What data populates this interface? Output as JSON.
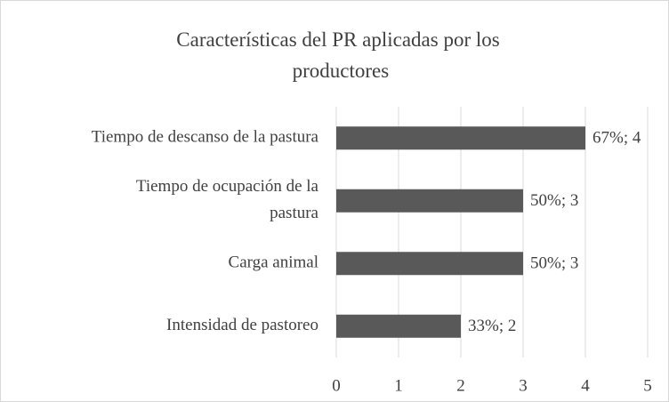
{
  "chart_data": {
    "type": "bar",
    "orientation": "horizontal",
    "title": "Características del PR aplicadas por los productores",
    "categories": [
      "Tiempo de descanso de la pastura",
      "Tiempo de ocupación de la pastura",
      "Carga animal",
      "Intensidad de pastoreo"
    ],
    "values": [
      4,
      3,
      3,
      2
    ],
    "value_labels": [
      "67%; 4",
      "50%; 3",
      "50%; 3",
      "33%; 2"
    ],
    "color": "#595959",
    "xlim": [
      0,
      5
    ],
    "xticks": [
      0,
      1,
      2,
      3,
      4,
      5
    ],
    "grid": true
  }
}
